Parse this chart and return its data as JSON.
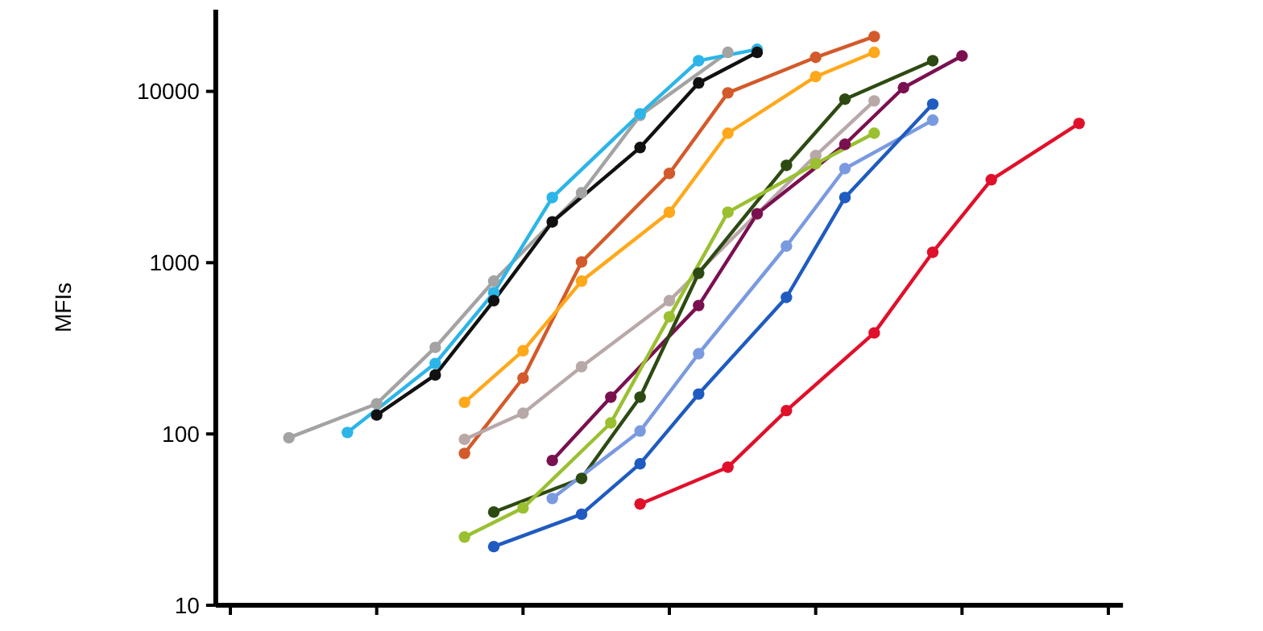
{
  "chart_data": {
    "type": "line",
    "ylabel": "MFIs",
    "log": "y",
    "ylim": [
      10,
      30000
    ],
    "yticks": [
      10,
      100,
      1000,
      10000
    ],
    "marker": "circle",
    "grid": false,
    "categories": [
      null,
      null,
      null,
      null,
      null,
      null,
      null,
      null,
      null,
      null,
      null,
      null,
      null,
      null,
      null,
      null,
      null,
      null,
      null,
      null,
      null,
      null,
      null,
      null,
      null,
      null,
      null,
      null,
      null,
      null,
      null
    ],
    "series": [
      {
        "color": "#a3a3a3",
        "values": [
          null,
          null,
          95,
          null,
          null,
          150,
          null,
          320,
          null,
          780,
          null,
          null,
          2560,
          null,
          7240,
          null,
          null,
          16900,
          null,
          null,
          null,
          null,
          null,
          null,
          null,
          null,
          null,
          null,
          null,
          null,
          null
        ]
      },
      {
        "color": "#2bb5e8",
        "values": [
          null,
          null,
          null,
          null,
          102,
          null,
          null,
          258,
          null,
          668,
          null,
          2400,
          null,
          null,
          7400,
          null,
          15100,
          null,
          17600,
          null,
          null,
          null,
          null,
          null,
          null,
          null,
          null,
          null,
          null,
          null,
          null
        ]
      },
      {
        "color": "#111111",
        "values": [
          null,
          null,
          null,
          null,
          null,
          129,
          null,
          221,
          null,
          600,
          null,
          1730,
          null,
          null,
          4700,
          null,
          11200,
          null,
          16900,
          null,
          null,
          null,
          null,
          null,
          null,
          null,
          null,
          null,
          null,
          null,
          null
        ]
      },
      {
        "color": "#d35a2a",
        "values": [
          null,
          null,
          null,
          null,
          null,
          null,
          null,
          null,
          77,
          null,
          212,
          null,
          1010,
          null,
          null,
          3320,
          null,
          9800,
          null,
          null,
          15800,
          null,
          20900,
          null,
          null,
          null,
          null,
          null,
          null,
          null,
          null
        ]
      },
      {
        "color": "#ffa81a",
        "values": [
          null,
          null,
          null,
          null,
          null,
          null,
          null,
          null,
          153,
          null,
          306,
          null,
          780,
          null,
          null,
          1970,
          null,
          5700,
          null,
          null,
          12200,
          null,
          16900,
          null,
          null,
          null,
          null,
          null,
          null,
          null,
          null
        ]
      },
      {
        "color": "#b8a8a8",
        "values": [
          null,
          null,
          null,
          null,
          null,
          null,
          null,
          null,
          93,
          null,
          132,
          null,
          247,
          null,
          null,
          600,
          null,
          null,
          1930,
          null,
          4220,
          null,
          8800,
          null,
          null,
          null,
          null,
          null,
          null,
          null,
          null
        ]
      },
      {
        "color": "#7a1050",
        "values": [
          null,
          null,
          null,
          null,
          null,
          null,
          null,
          null,
          null,
          null,
          null,
          70,
          null,
          164,
          null,
          null,
          562,
          null,
          1930,
          null,
          null,
          4910,
          null,
          10500,
          null,
          16100,
          null,
          null,
          null,
          null,
          null
        ]
      },
      {
        "color": "#2d4a12",
        "values": [
          null,
          null,
          null,
          null,
          null,
          null,
          null,
          null,
          null,
          35,
          null,
          null,
          55,
          null,
          164,
          null,
          867,
          null,
          null,
          3700,
          null,
          9000,
          null,
          null,
          15100,
          null,
          null,
          null,
          null,
          null,
          null
        ]
      },
      {
        "color": "#9ac030",
        "values": [
          null,
          null,
          null,
          null,
          null,
          null,
          null,
          null,
          25,
          null,
          37,
          null,
          null,
          116,
          null,
          483,
          null,
          1970,
          null,
          null,
          3780,
          null,
          5700,
          null,
          null,
          null,
          null,
          null,
          null,
          null,
          null
        ]
      },
      {
        "color": "#7a9ae0",
        "values": [
          null,
          null,
          null,
          null,
          null,
          null,
          null,
          null,
          null,
          null,
          null,
          42,
          null,
          null,
          104,
          null,
          294,
          null,
          null,
          1250,
          null,
          3540,
          null,
          null,
          6790,
          null,
          null,
          null,
          null,
          null,
          null
        ]
      },
      {
        "color": "#1f5bc0",
        "values": [
          null,
          null,
          null,
          null,
          null,
          null,
          null,
          null,
          null,
          22,
          null,
          null,
          34,
          null,
          67,
          null,
          171,
          null,
          null,
          627,
          null,
          2400,
          null,
          null,
          8430,
          null,
          null,
          null,
          null,
          null,
          null
        ]
      },
      {
        "color": "#e0102a",
        "values": [
          null,
          null,
          null,
          null,
          null,
          null,
          null,
          null,
          null,
          null,
          null,
          null,
          null,
          null,
          39,
          null,
          null,
          64,
          null,
          137,
          null,
          null,
          389,
          null,
          1150,
          null,
          3050,
          null,
          null,
          6500,
          null
        ]
      }
    ]
  }
}
